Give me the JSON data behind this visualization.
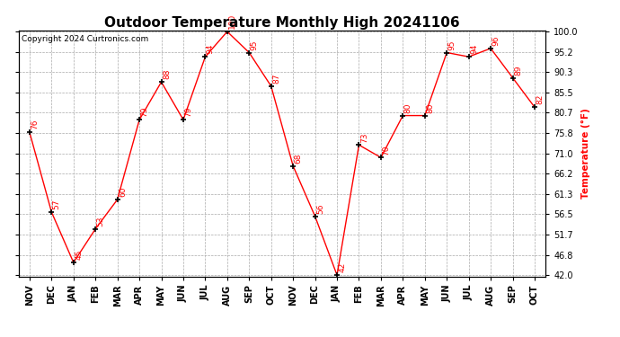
{
  "title": "Outdoor Temperature Monthly High 20241106",
  "copyright": "Copyright 2024 Curtronics.com",
  "ylabel": "Temperature (°F)",
  "months": [
    "NOV",
    "DEC",
    "JAN",
    "FEB",
    "MAR",
    "APR",
    "MAY",
    "JUN",
    "JUL",
    "AUG",
    "SEP",
    "OCT",
    "NOV",
    "DEC",
    "JAN",
    "FEB",
    "MAR",
    "APR",
    "MAY",
    "JUN",
    "JUL",
    "AUG",
    "SEP",
    "OCT"
  ],
  "values": [
    76,
    57,
    45,
    53,
    60,
    79,
    88,
    79,
    94,
    100,
    95,
    87,
    68,
    56,
    42,
    73,
    70,
    80,
    80,
    95,
    94,
    96,
    89,
    82
  ],
  "line_color": "red",
  "marker": "+",
  "marker_color": "black",
  "label_color": "red",
  "grid_color": "#aaaaaa",
  "bg_color": "white",
  "ylim_min": 42.0,
  "ylim_max": 100.0,
  "yticks": [
    42.0,
    46.8,
    51.7,
    56.5,
    61.3,
    66.2,
    71.0,
    75.8,
    80.7,
    85.5,
    90.3,
    95.2,
    100.0
  ],
  "title_fontsize": 11,
  "label_fontsize": 6.5,
  "tick_fontsize": 7,
  "copyright_fontsize": 6.5,
  "ylabel_fontsize": 7.5
}
